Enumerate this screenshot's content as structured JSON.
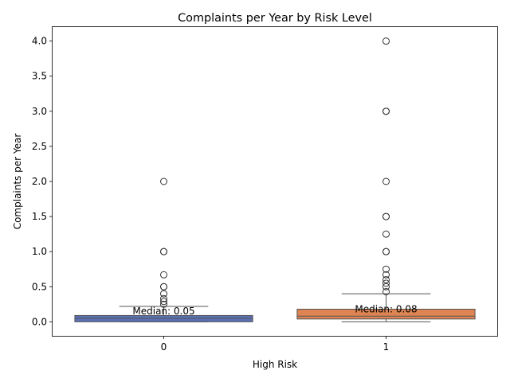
{
  "chart_data": {
    "type": "box",
    "title": "Complaints per Year by Risk Level",
    "xlabel": "High Risk",
    "ylabel": "Complaints per Year",
    "categories": [
      "0",
      "1"
    ],
    "ylim": [
      -0.2,
      4.2
    ],
    "yticks": [
      0.0,
      0.5,
      1.0,
      1.5,
      2.0,
      2.5,
      3.0,
      3.5,
      4.0
    ],
    "ytick_labels": [
      "0.0",
      "0.5",
      "1.0",
      "1.5",
      "2.0",
      "2.5",
      "3.0",
      "3.5",
      "4.0"
    ],
    "grid": false,
    "series": [
      {
        "category": "0",
        "color": "#5a70b5",
        "whisker_low": 0.0,
        "q1": 0.0,
        "median": 0.05,
        "q3": 0.09,
        "whisker_high": 0.22,
        "outliers": [
          0.25,
          0.29,
          0.33,
          0.4,
          0.5,
          0.5,
          0.67,
          1.0,
          1.0,
          2.0
        ],
        "median_label": "Median: 0.05"
      },
      {
        "category": "1",
        "color": "#dd8452",
        "whisker_low": 0.0,
        "q1": 0.04,
        "median": 0.08,
        "q3": 0.18,
        "whisker_high": 0.4,
        "outliers": [
          0.43,
          0.5,
          0.55,
          0.6,
          0.67,
          0.75,
          1.0,
          1.0,
          1.25,
          1.5,
          1.5,
          2.0,
          3.0,
          3.0,
          4.0
        ],
        "median_label": "Median: 0.08"
      }
    ]
  }
}
